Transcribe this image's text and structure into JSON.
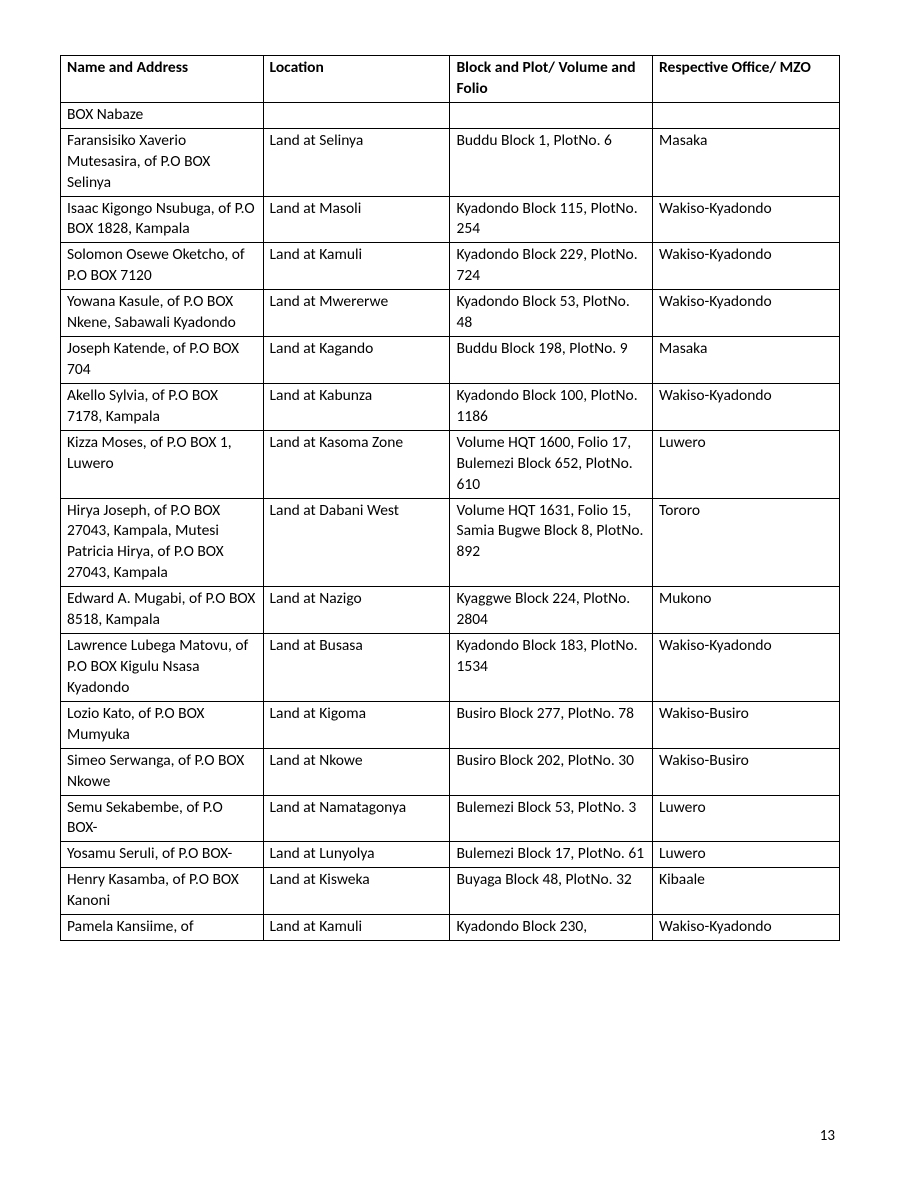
{
  "table": {
    "columns": [
      "Name and Address",
      "Location",
      "Block and Plot/\nVolume and Folio",
      "Respective Office/\nMZO"
    ],
    "rows": [
      [
        "BOX Nabaze",
        "",
        "",
        ""
      ],
      [
        "Faransisiko Xaverio Mutesasira, of P.O BOX Selinya",
        "Land at Selinya",
        "Buddu Block 1, PlotNo. 6",
        "Masaka"
      ],
      [
        "Isaac Kigongo Nsubuga, of P.O BOX 1828, Kampala",
        "Land at Masoli",
        "Kyadondo Block 115, PlotNo. 254",
        "Wakiso-Kyadondo"
      ],
      [
        "Solomon Osewe Oketcho, of P.O BOX 7120",
        "Land at Kamuli",
        "Kyadondo Block 229, PlotNo. 724",
        "Wakiso-Kyadondo"
      ],
      [
        "Yowana Kasule, of P.O BOX Nkene, Sabawali Kyadondo",
        "Land at Mwererwe",
        "Kyadondo Block 53, PlotNo. 48",
        "Wakiso-Kyadondo"
      ],
      [
        "Joseph Katende, of P.O BOX 704",
        "Land at Kagando",
        "Buddu Block 198, PlotNo. 9",
        "Masaka"
      ],
      [
        "Akello Sylvia, of P.O BOX 7178, Kampala",
        "Land at Kabunza",
        "Kyadondo Block 100, PlotNo. 1186",
        "Wakiso-Kyadondo"
      ],
      [
        "Kizza Moses, of P.O BOX 1, Luwero",
        "Land at Kasoma Zone",
        "Volume HQT 1600, Folio 17, Bulemezi Block 652, PlotNo. 610",
        "Luwero"
      ],
      [
        "Hirya Joseph, of P.O BOX 27043, Kampala, Mutesi Patricia Hirya, of P.O BOX 27043, Kampala",
        "Land at Dabani West",
        "Volume HQT 1631, Folio 15, Samia Bugwe Block 8, PlotNo. 892",
        "Tororo"
      ],
      [
        "Edward A. Mugabi, of P.O BOX 8518, Kampala",
        "Land at Nazigo",
        "Kyaggwe Block 224, PlotNo. 2804",
        "Mukono"
      ],
      [
        "Lawrence Lubega Matovu, of P.O BOX Kigulu Nsasa Kyadondo",
        "Land at Busasa",
        "Kyadondo Block 183, PlotNo. 1534",
        "Wakiso-Kyadondo"
      ],
      [
        "Lozio Kato, of P.O BOX Mumyuka",
        "Land at Kigoma",
        "Busiro Block 277, PlotNo. 78",
        "Wakiso-Busiro"
      ],
      [
        "Simeo Serwanga, of P.O BOX Nkowe",
        "Land at Nkowe",
        "Busiro Block 202, PlotNo. 30",
        "Wakiso-Busiro"
      ],
      [
        "Semu Sekabembe, of P.O BOX-",
        "Land at Namatagonya",
        "Bulemezi Block 53, PlotNo. 3",
        "Luwero"
      ],
      [
        "Yosamu Seruli, of P.O BOX-",
        "Land at Lunyolya",
        "Bulemezi Block 17, PlotNo. 61",
        "Luwero"
      ],
      [
        "Henry Kasamba, of P.O BOX Kanoni",
        "Land at Kisweka",
        "Buyaga Block 48, PlotNo. 32",
        "Kibaale"
      ],
      [
        "Pamela Kansiime, of",
        "Land at Kamuli",
        "Kyadondo Block 230,",
        "Wakiso-Kyadondo"
      ]
    ]
  },
  "page_number": "13"
}
